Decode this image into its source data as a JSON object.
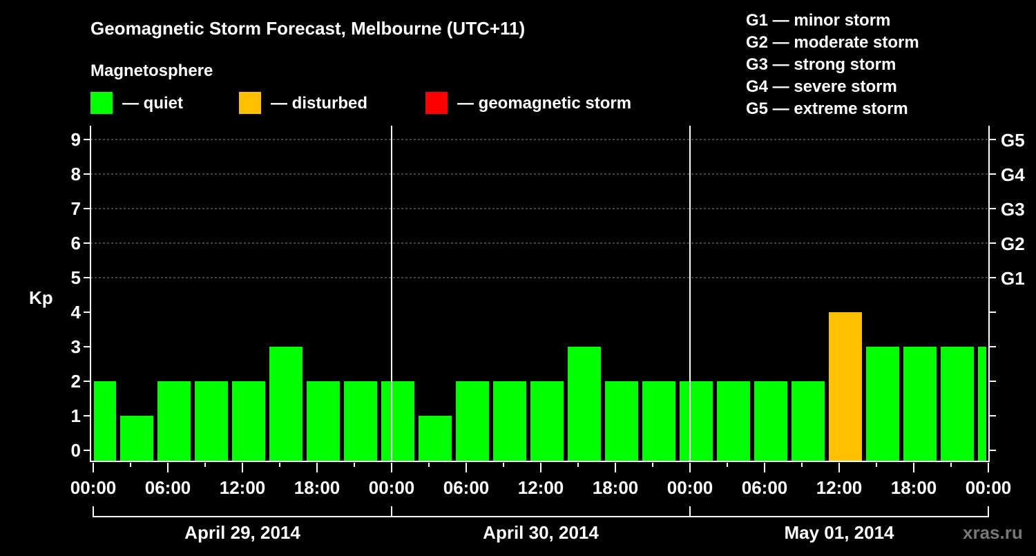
{
  "chart_data": {
    "type": "bar",
    "title": "Geomagnetic Storm Forecast, Melbourne (UTC+11)",
    "legend_title": "Magnetosphere",
    "legend": [
      {
        "label": "— quiet",
        "color": "#00ff00"
      },
      {
        "label": "— disturbed",
        "color": "#ffc000"
      },
      {
        "label": "— geomagnetic storm",
        "color": "#ff0000"
      }
    ],
    "storm_scale": [
      "G1 — minor storm",
      "G2 — moderate storm",
      "G3 — strong storm",
      "G4 — severe storm",
      "G5 — extreme storm"
    ],
    "ylabel": "Kp",
    "ylim": [
      0,
      9
    ],
    "yticks": [
      "0",
      "1",
      "2",
      "3",
      "4",
      "5",
      "6",
      "7",
      "8",
      "9"
    ],
    "right_ticks": [
      {
        "kp": 5,
        "label": "G1"
      },
      {
        "kp": 6,
        "label": "G2"
      },
      {
        "kp": 7,
        "label": "G3"
      },
      {
        "kp": 8,
        "label": "G4"
      },
      {
        "kp": 9,
        "label": "G5"
      }
    ],
    "grid": true,
    "xlim_hours": [
      0,
      72
    ],
    "xtick_labels": [
      "00:00",
      "06:00",
      "12:00",
      "18:00",
      "00:00",
      "06:00",
      "12:00",
      "18:00",
      "00:00",
      "06:00",
      "12:00",
      "18:00",
      "00:00"
    ],
    "days": [
      "April 29, 2014",
      "April 30, 2014",
      "May 01, 2014"
    ],
    "bar_interval_hours": 3,
    "bar_start_hours": [
      -1,
      2,
      5,
      8,
      11,
      14,
      17,
      20,
      23,
      26,
      29,
      32,
      35,
      38,
      41,
      44,
      47,
      50,
      53,
      56,
      59,
      62,
      65,
      68,
      71
    ],
    "values": [
      2,
      1,
      2,
      2,
      2,
      3,
      2,
      2,
      2,
      1,
      2,
      2,
      2,
      3,
      2,
      2,
      2,
      2,
      2,
      2,
      4,
      3,
      3,
      3,
      3
    ],
    "status": [
      "quiet",
      "quiet",
      "quiet",
      "quiet",
      "quiet",
      "quiet",
      "quiet",
      "quiet",
      "quiet",
      "quiet",
      "quiet",
      "quiet",
      "quiet",
      "quiet",
      "quiet",
      "quiet",
      "quiet",
      "quiet",
      "quiet",
      "quiet",
      "disturbed",
      "quiet",
      "quiet",
      "quiet",
      "quiet"
    ],
    "colors": {
      "quiet": "#00ff00",
      "disturbed": "#ffc000",
      "storm": "#ff0000"
    },
    "watermark": "xras.ru"
  }
}
